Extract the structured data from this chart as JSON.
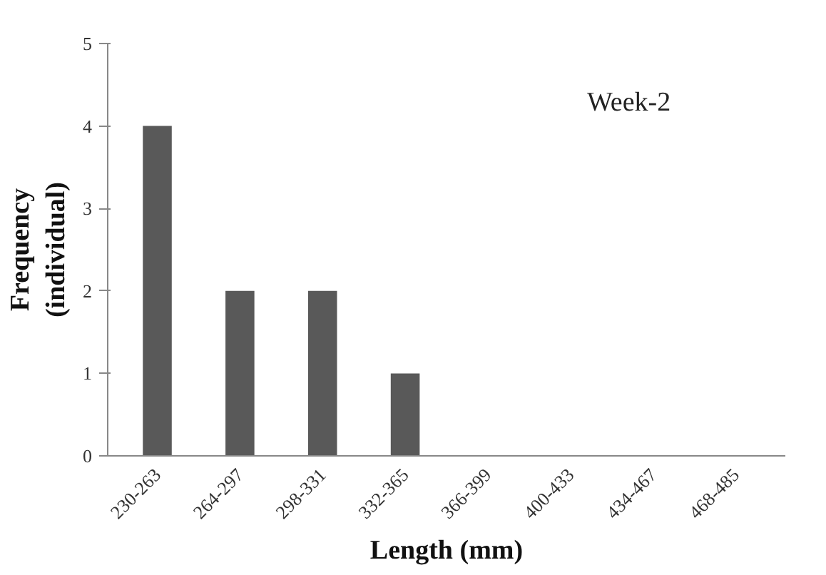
{
  "chart_data": {
    "type": "bar",
    "xlabel": "Length (mm)",
    "ylabel": "Frequency (individual)",
    "categories": [
      "230-263",
      "264-297",
      "298-331",
      "332-365",
      "366-399",
      "400-433",
      "434-467",
      "468-485"
    ],
    "values": [
      4,
      2,
      2,
      1,
      0,
      0,
      0,
      0
    ],
    "color": "#595959",
    "ylim": [
      0,
      5
    ],
    "yticks": [
      0,
      1,
      2,
      3,
      4,
      5
    ],
    "grid": false,
    "annotations": [
      "Week-2"
    ]
  }
}
